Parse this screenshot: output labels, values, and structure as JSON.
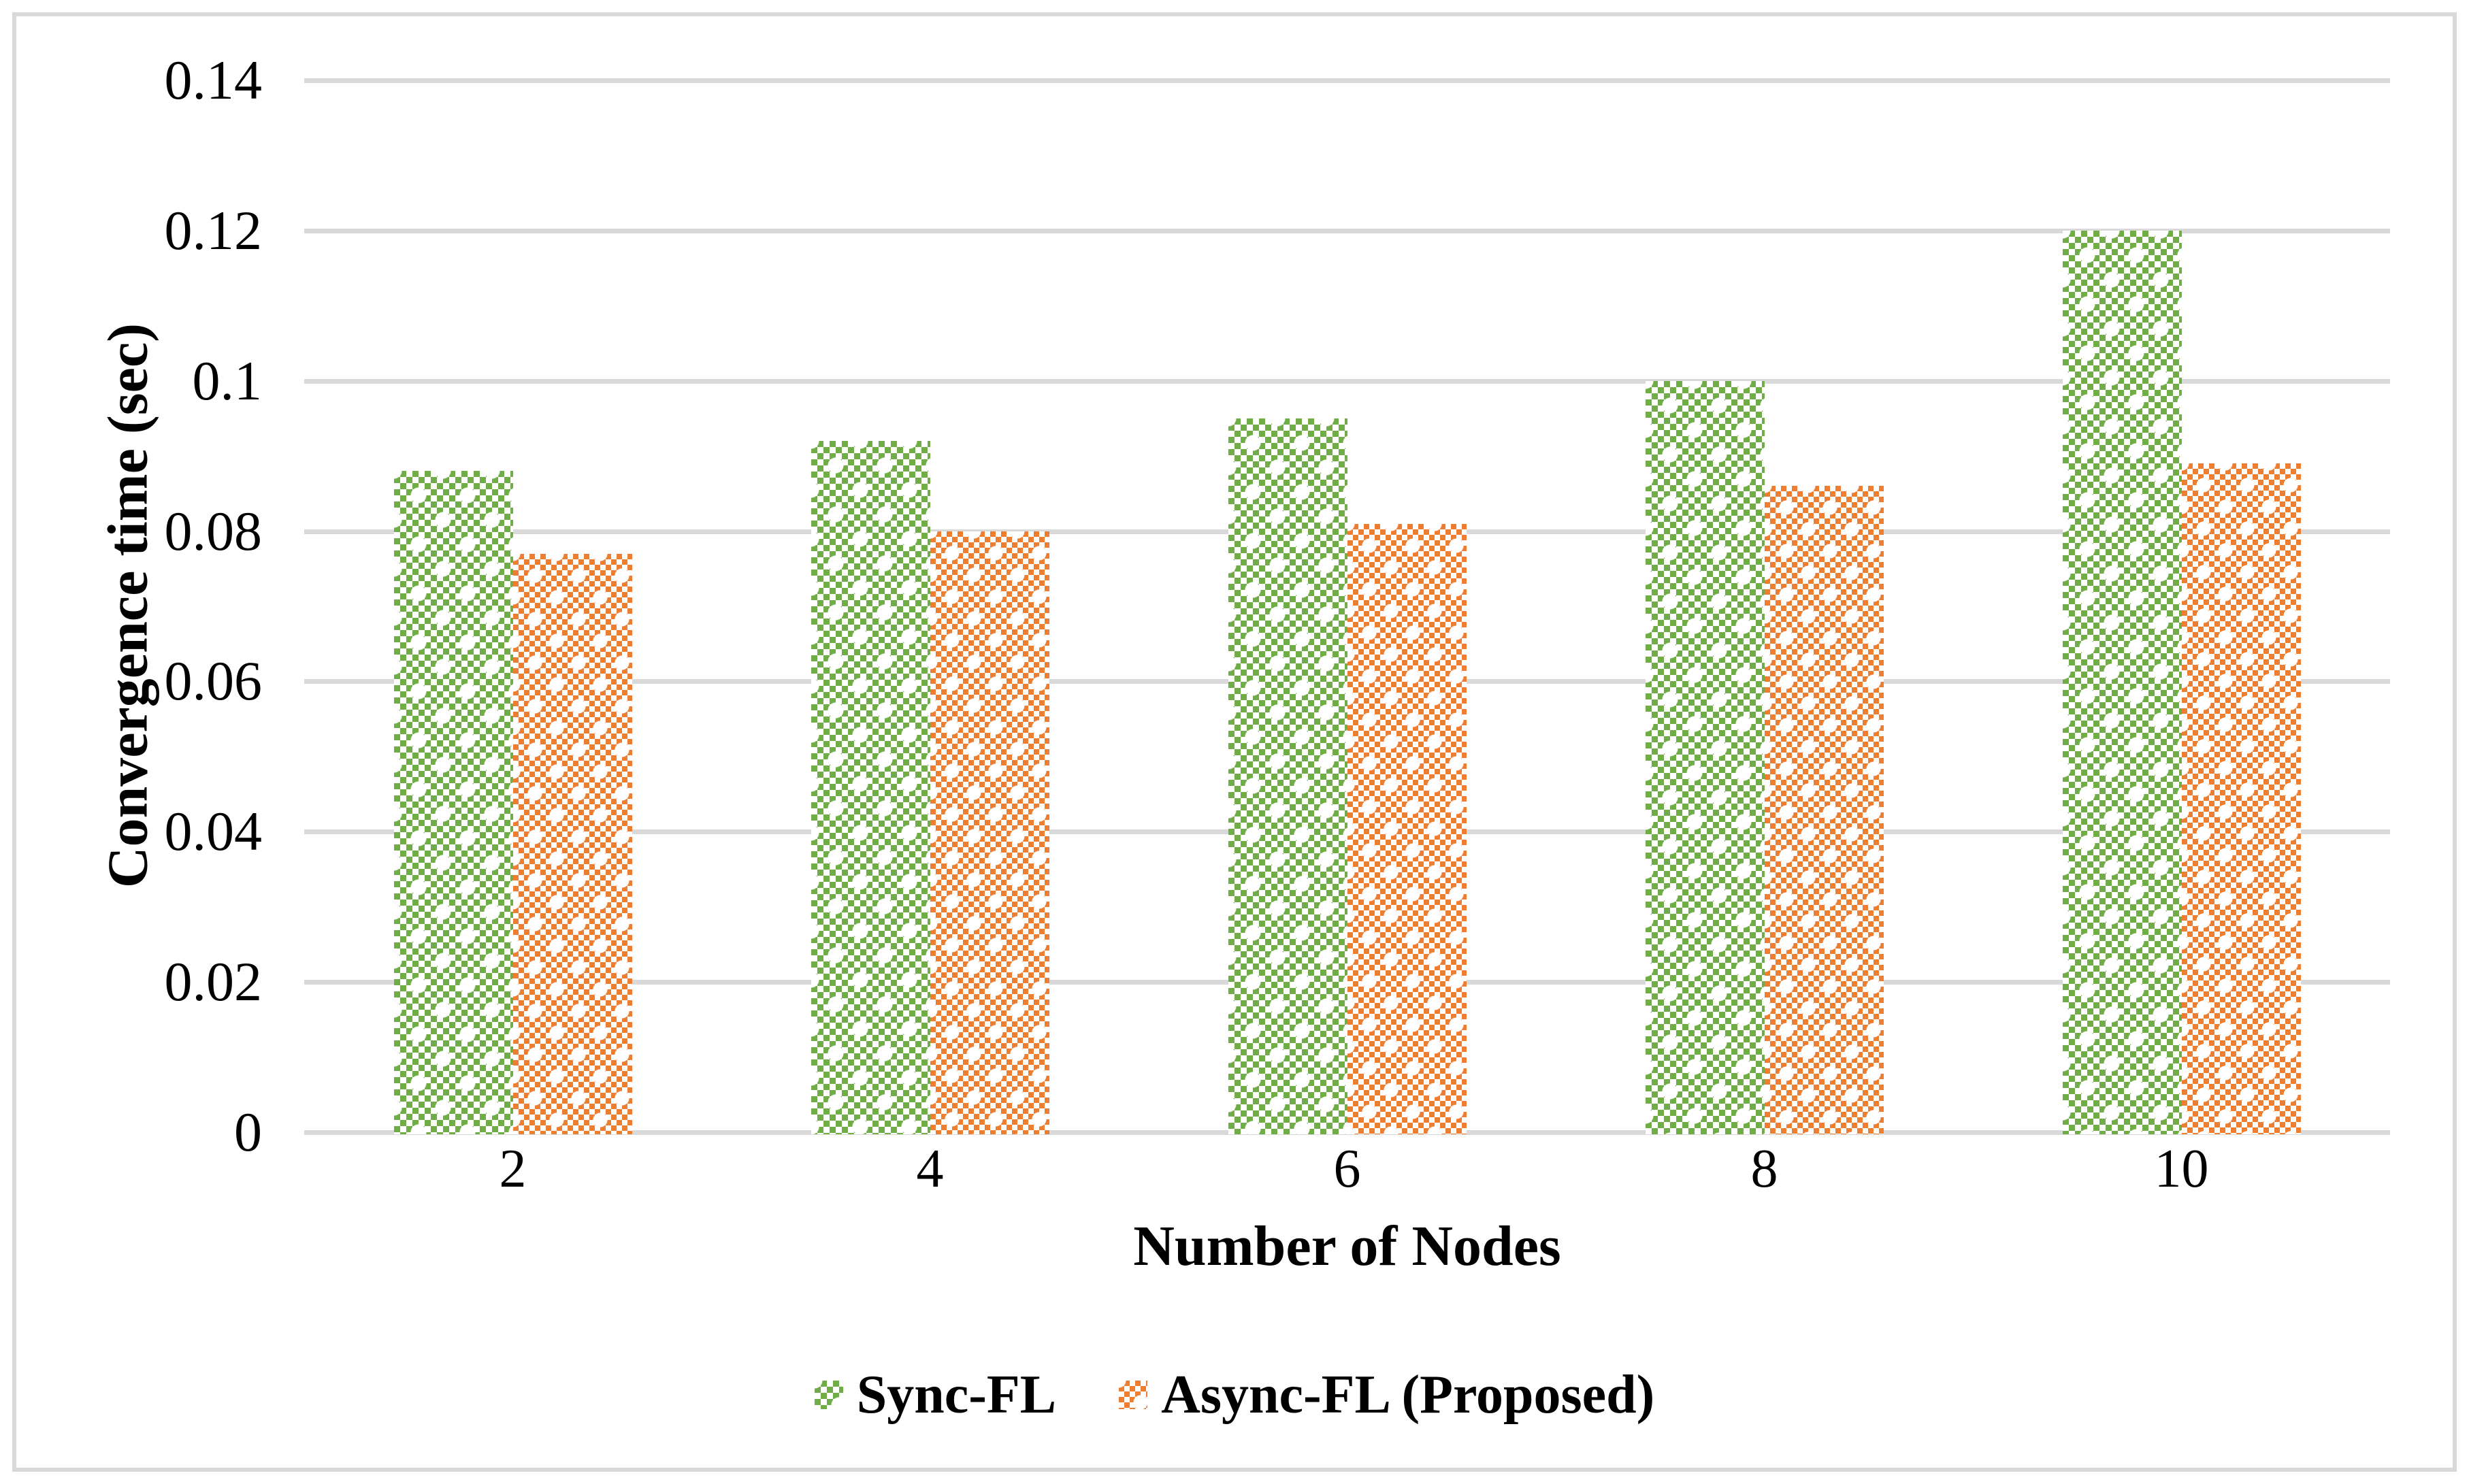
{
  "chart_data": {
    "type": "bar",
    "title": "",
    "categories": [
      "2",
      "4",
      "6",
      "8",
      "10"
    ],
    "series": [
      {
        "name": "Sync-FL",
        "color": "#70AD47",
        "pattern": "checkerboard",
        "values": [
          0.088,
          0.092,
          0.095,
          0.1,
          0.12
        ]
      },
      {
        "name": "Async-FL (Proposed)",
        "color": "#ED7D31",
        "pattern": "checkerboard-fine",
        "values": [
          0.077,
          0.08,
          0.081,
          0.086,
          0.089
        ]
      }
    ],
    "xlabel": "Number of Nodes",
    "ylabel": "Convergence time (sec)",
    "ylim": [
      0,
      0.14
    ],
    "ytick_step": 0.02,
    "ytick_labels": [
      "0",
      "0.02",
      "0.04",
      "0.06",
      "0.08",
      "0.1",
      "0.12",
      "0.14"
    ],
    "grid": true,
    "legend_position": "bottom",
    "gridline_color": "#D9D9D9",
    "border_color": "#D9D9D9",
    "background_color": "#FFFFFF",
    "text_color": "#000000"
  }
}
